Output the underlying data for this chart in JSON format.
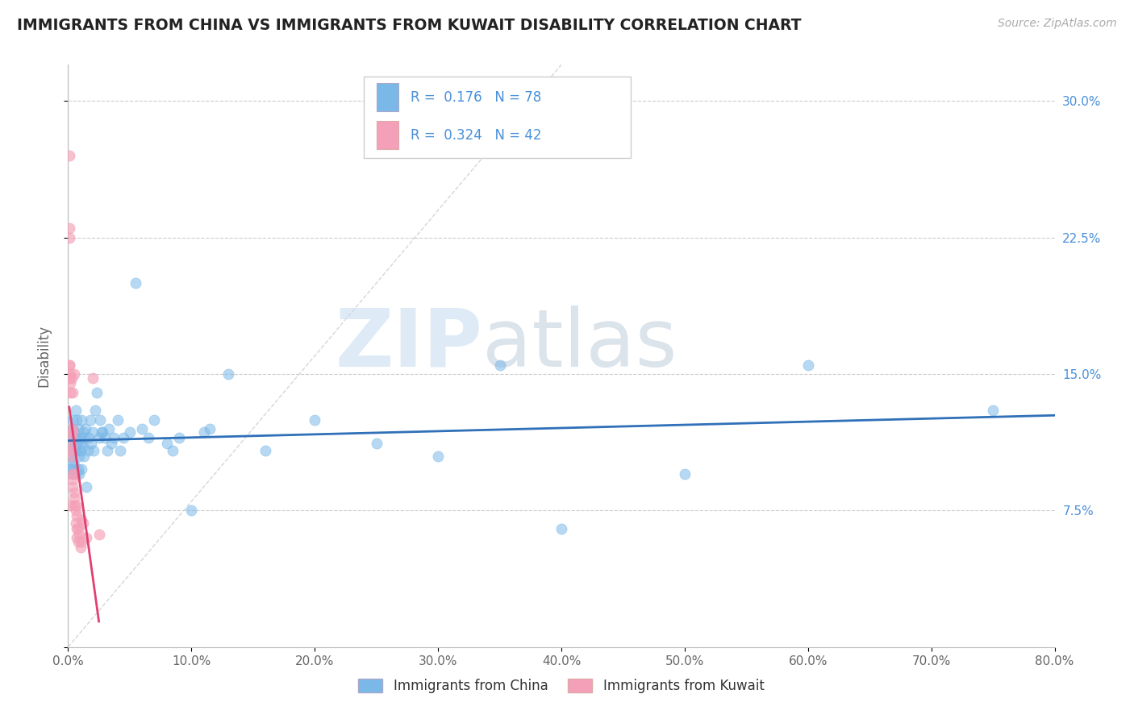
{
  "title": "IMMIGRANTS FROM CHINA VS IMMIGRANTS FROM KUWAIT DISABILITY CORRELATION CHART",
  "source": "Source: ZipAtlas.com",
  "ylabel": "Disability",
  "china_R": 0.176,
  "china_N": 78,
  "kuwait_R": 0.324,
  "kuwait_N": 42,
  "china_color": "#7ab8e8",
  "kuwait_color": "#f4a0b8",
  "china_line_color": "#3070b8",
  "kuwait_line_color": "#e04070",
  "china_scatter": [
    [
      0.001,
      0.118
    ],
    [
      0.002,
      0.105
    ],
    [
      0.002,
      0.098
    ],
    [
      0.003,
      0.112
    ],
    [
      0.003,
      0.108
    ],
    [
      0.003,
      0.115
    ],
    [
      0.003,
      0.095
    ],
    [
      0.004,
      0.12
    ],
    [
      0.004,
      0.102
    ],
    [
      0.004,
      0.098
    ],
    [
      0.004,
      0.125
    ],
    [
      0.005,
      0.11
    ],
    [
      0.005,
      0.108
    ],
    [
      0.005,
      0.115
    ],
    [
      0.005,
      0.1
    ],
    [
      0.005,
      0.118
    ],
    [
      0.006,
      0.095
    ],
    [
      0.006,
      0.13
    ],
    [
      0.006,
      0.115
    ],
    [
      0.007,
      0.108
    ],
    [
      0.007,
      0.125
    ],
    [
      0.007,
      0.112
    ],
    [
      0.008,
      0.098
    ],
    [
      0.008,
      0.12
    ],
    [
      0.009,
      0.105
    ],
    [
      0.009,
      0.095
    ],
    [
      0.01,
      0.115
    ],
    [
      0.01,
      0.108
    ],
    [
      0.01,
      0.112
    ],
    [
      0.011,
      0.125
    ],
    [
      0.011,
      0.098
    ],
    [
      0.012,
      0.118
    ],
    [
      0.012,
      0.11
    ],
    [
      0.013,
      0.105
    ],
    [
      0.013,
      0.115
    ],
    [
      0.014,
      0.12
    ],
    [
      0.015,
      0.088
    ],
    [
      0.016,
      0.108
    ],
    [
      0.017,
      0.115
    ],
    [
      0.018,
      0.125
    ],
    [
      0.019,
      0.112
    ],
    [
      0.02,
      0.118
    ],
    [
      0.021,
      0.108
    ],
    [
      0.022,
      0.13
    ],
    [
      0.023,
      0.14
    ],
    [
      0.025,
      0.115
    ],
    [
      0.026,
      0.125
    ],
    [
      0.027,
      0.118
    ],
    [
      0.028,
      0.118
    ],
    [
      0.03,
      0.115
    ],
    [
      0.032,
      0.108
    ],
    [
      0.033,
      0.12
    ],
    [
      0.035,
      0.112
    ],
    [
      0.037,
      0.115
    ],
    [
      0.04,
      0.125
    ],
    [
      0.042,
      0.108
    ],
    [
      0.045,
      0.115
    ],
    [
      0.05,
      0.118
    ],
    [
      0.055,
      0.2
    ],
    [
      0.06,
      0.12
    ],
    [
      0.065,
      0.115
    ],
    [
      0.07,
      0.125
    ],
    [
      0.08,
      0.112
    ],
    [
      0.085,
      0.108
    ],
    [
      0.09,
      0.115
    ],
    [
      0.1,
      0.075
    ],
    [
      0.11,
      0.118
    ],
    [
      0.115,
      0.12
    ],
    [
      0.13,
      0.15
    ],
    [
      0.16,
      0.108
    ],
    [
      0.2,
      0.125
    ],
    [
      0.25,
      0.112
    ],
    [
      0.3,
      0.105
    ],
    [
      0.35,
      0.155
    ],
    [
      0.4,
      0.065
    ],
    [
      0.5,
      0.095
    ],
    [
      0.6,
      0.155
    ],
    [
      0.75,
      0.13
    ]
  ],
  "kuwait_scatter": [
    [
      0.001,
      0.148
    ],
    [
      0.001,
      0.155
    ],
    [
      0.002,
      0.14
    ],
    [
      0.002,
      0.15
    ],
    [
      0.002,
      0.145
    ],
    [
      0.002,
      0.108
    ],
    [
      0.003,
      0.115
    ],
    [
      0.003,
      0.12
    ],
    [
      0.003,
      0.11
    ],
    [
      0.003,
      0.105
    ],
    [
      0.004,
      0.095
    ],
    [
      0.004,
      0.118
    ],
    [
      0.004,
      0.088
    ],
    [
      0.004,
      0.092
    ],
    [
      0.005,
      0.085
    ],
    [
      0.005,
      0.095
    ],
    [
      0.005,
      0.078
    ],
    [
      0.005,
      0.082
    ],
    [
      0.006,
      0.075
    ],
    [
      0.006,
      0.068
    ],
    [
      0.006,
      0.078
    ],
    [
      0.007,
      0.072
    ],
    [
      0.007,
      0.065
    ],
    [
      0.007,
      0.06
    ],
    [
      0.008,
      0.065
    ],
    [
      0.008,
      0.058
    ],
    [
      0.009,
      0.062
    ],
    [
      0.01,
      0.055
    ],
    [
      0.011,
      0.058
    ],
    [
      0.011,
      0.07
    ],
    [
      0.012,
      0.068
    ],
    [
      0.015,
      0.06
    ],
    [
      0.001,
      0.23
    ],
    [
      0.001,
      0.155
    ],
    [
      0.003,
      0.148
    ],
    [
      0.004,
      0.14
    ],
    [
      0.005,
      0.15
    ],
    [
      0.02,
      0.148
    ],
    [
      0.025,
      0.062
    ],
    [
      0.002,
      0.078
    ],
    [
      0.001,
      0.27
    ],
    [
      0.001,
      0.225
    ]
  ],
  "xmin": 0.0,
  "xmax": 0.8,
  "ymin": 0.0,
  "ymax": 0.32,
  "xticks": [
    0.0,
    0.1,
    0.2,
    0.3,
    0.4,
    0.5,
    0.6,
    0.7,
    0.8
  ],
  "xticklabels": [
    "0.0%",
    "10.0%",
    "20.0%",
    "30.0%",
    "40.0%",
    "50.0%",
    "60.0%",
    "70.0%",
    "80.0%"
  ],
  "yticks_right": [
    0.075,
    0.15,
    0.225,
    0.3
  ],
  "yticklabels_right": [
    "7.5%",
    "15.0%",
    "22.5%",
    "30.0%"
  ],
  "watermark_zip": "ZIP",
  "watermark_atlas": "atlas",
  "legend_china_label": "Immigrants from China",
  "legend_kuwait_label": "Immigrants from Kuwait",
  "background_color": "#ffffff",
  "grid_color": "#cccccc",
  "title_color": "#222222",
  "axis_label_color": "#666666",
  "tick_color": "#4a90d9",
  "diagonal_line_color": "#cccccc"
}
